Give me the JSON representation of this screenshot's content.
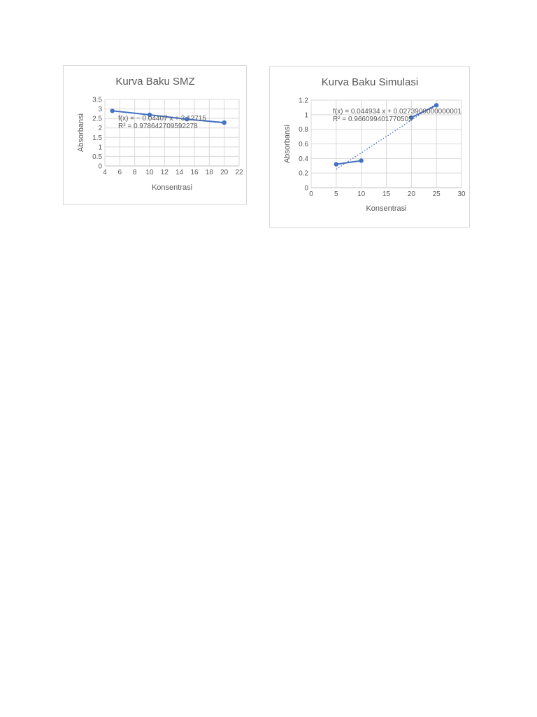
{
  "chart_data": [
    {
      "type": "scatter",
      "title": "Kurva Baku SMZ",
      "xlabel": "Konsentrasi",
      "ylabel": "Absorbansi",
      "xlim": [
        4,
        22
      ],
      "ylim": [
        0,
        3.5
      ],
      "x_ticks": [
        "4",
        "6",
        "8",
        "10",
        "12",
        "14",
        "16",
        "18",
        "20",
        "22"
      ],
      "y_ticks": [
        "0",
        "0.5",
        "1",
        "1.5",
        "2",
        "2.5",
        "3",
        "3.5"
      ],
      "grid": true,
      "series": [
        {
          "x": [
            5,
            10,
            15,
            20
          ],
          "y": [
            2.9,
            2.69,
            2.46,
            2.28
          ]
        }
      ],
      "trendline": {
        "equation": "f(x) = − 0.04407 x + 3.12715",
        "r_squared": "R² = 0.978642709592278",
        "slope": -0.04407,
        "intercept": 3.12715,
        "x_range": [
          5,
          20
        ]
      },
      "colors": {
        "series": "#4472c4"
      }
    },
    {
      "type": "scatter",
      "title": "Kurva Baku Simulasi",
      "xlabel": "Konsentrasi",
      "ylabel": "Absorbansi",
      "xlim": [
        0,
        30
      ],
      "ylim": [
        0,
        1.2
      ],
      "x_ticks": [
        "0",
        "5",
        "10",
        "15",
        "20",
        "25",
        "30"
      ],
      "y_ticks": [
        "0",
        "0.2",
        "0.4",
        "0.6",
        "0.8",
        "1",
        "1.2"
      ],
      "grid": true,
      "series": [
        {
          "x": [
            5,
            10
          ],
          "y": [
            0.32,
            0.37
          ]
        },
        {
          "x": [
            20,
            25
          ],
          "y": [
            0.96,
            1.13
          ]
        }
      ],
      "trendline": {
        "equation": "f(x) = 0.044934 x + 0.0273900000000001",
        "r_squared": "R² = 0.966099401770505",
        "slope": 0.044934,
        "intercept": 0.02739,
        "x_range": [
          5,
          25
        ]
      },
      "colors": {
        "series": "#4472c4"
      }
    }
  ]
}
